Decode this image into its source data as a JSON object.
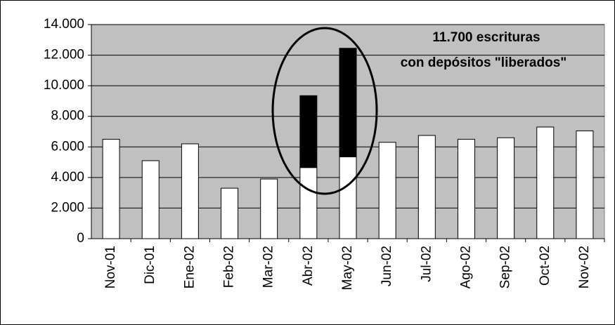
{
  "chart_data": {
    "type": "stacked_bar",
    "annotation": [
      "11.700 escrituras",
      "con depósitos \"liberados\""
    ],
    "categories": [
      "Nov-01",
      "Dic-01",
      "Ene-02",
      "Feb-02",
      "Mar-02",
      "Abr-02",
      "May-02",
      "Jun-02",
      "Jul-02",
      "Ago-02",
      "Sep-02",
      "Oct-02",
      "Nov-02"
    ],
    "series": [
      {
        "color": "#ffffff",
        "values": [
          6500,
          5100,
          6200,
          3300,
          3900,
          4650,
          5350,
          6300,
          6750,
          6500,
          6600,
          7300,
          7050
        ]
      },
      {
        "color": "#000000",
        "values": [
          null,
          null,
          null,
          null,
          null,
          4700,
          7100,
          null,
          null,
          null,
          null,
          null,
          null
        ]
      }
    ],
    "ylim": [
      0,
      14000
    ],
    "yticks": [
      0,
      {
        "value": 2000,
        "label": "2.000"
      },
      {
        "value": 4000,
        "label": "4.000"
      },
      {
        "value": 6000,
        "label": "6.000"
      },
      {
        "value": 8000,
        "label": "8.000"
      },
      {
        "value": 10000,
        "label": "10.000"
      },
      {
        "value": 12000,
        "label": "12.000"
      },
      {
        "value": 14000,
        "label": "14.000"
      }
    ],
    "grid": true,
    "plot_background": "#c0c0c0"
  }
}
